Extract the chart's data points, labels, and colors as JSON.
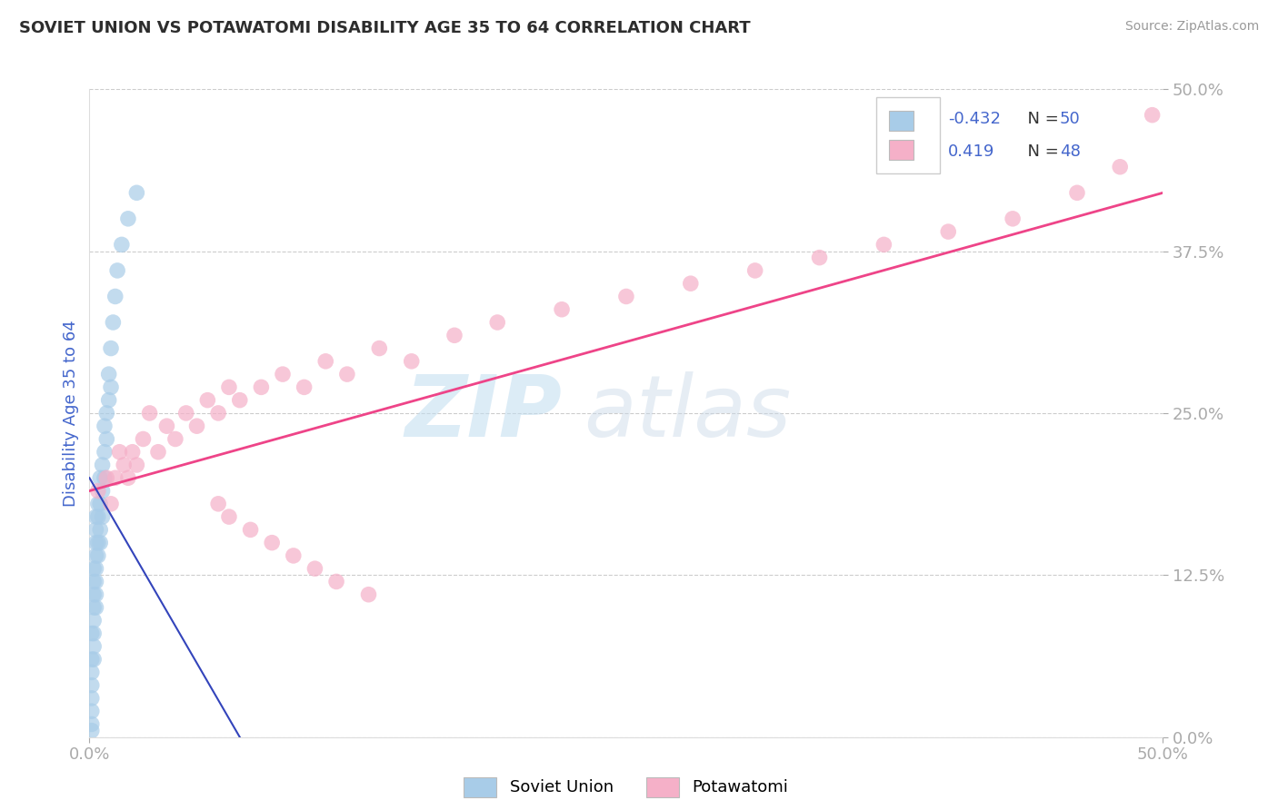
{
  "title": "SOVIET UNION VS POTAWATOMI DISABILITY AGE 35 TO 64 CORRELATION CHART",
  "source_text": "Source: ZipAtlas.com",
  "ylabel": "Disability Age 35 to 64",
  "xlim": [
    0.0,
    0.5
  ],
  "ylim": [
    0.0,
    0.5
  ],
  "ytick_vals": [
    0.0,
    0.125,
    0.25,
    0.375,
    0.5
  ],
  "ytick_labels": [
    "0.0%",
    "12.5%",
    "25.0%",
    "37.5%",
    "50.0%"
  ],
  "xtick_vals": [
    0.0,
    0.5
  ],
  "xtick_labels": [
    "0.0%",
    "50.0%"
  ],
  "grid_color": "#cccccc",
  "bg_color": "#ffffff",
  "soviet_color": "#a8cce8",
  "potawatomi_color": "#f5b0c8",
  "soviet_line_color": "#3344bb",
  "potawatomi_line_color": "#ee4488",
  "title_color": "#2d2d2d",
  "axis_color": "#4466cc",
  "r1_color": "#cc0000",
  "r2_color": "#4466cc",
  "legend_r1": "-0.432",
  "legend_n1": "50",
  "legend_r2": "0.419",
  "legend_n2": "48",
  "soviet_x": [
    0.001,
    0.001,
    0.001,
    0.001,
    0.001,
    0.001,
    0.001,
    0.001,
    0.002,
    0.002,
    0.002,
    0.002,
    0.002,
    0.002,
    0.002,
    0.002,
    0.003,
    0.003,
    0.003,
    0.003,
    0.003,
    0.003,
    0.003,
    0.003,
    0.004,
    0.004,
    0.004,
    0.004,
    0.005,
    0.005,
    0.005,
    0.005,
    0.006,
    0.006,
    0.006,
    0.007,
    0.007,
    0.007,
    0.008,
    0.008,
    0.009,
    0.009,
    0.01,
    0.01,
    0.011,
    0.012,
    0.013,
    0.015,
    0.018,
    0.022
  ],
  "soviet_y": [
    0.005,
    0.01,
    0.02,
    0.03,
    0.04,
    0.05,
    0.06,
    0.08,
    0.06,
    0.07,
    0.08,
    0.09,
    0.1,
    0.11,
    0.12,
    0.13,
    0.1,
    0.11,
    0.12,
    0.13,
    0.14,
    0.15,
    0.16,
    0.17,
    0.14,
    0.15,
    0.17,
    0.18,
    0.15,
    0.16,
    0.18,
    0.2,
    0.17,
    0.19,
    0.21,
    0.2,
    0.22,
    0.24,
    0.23,
    0.25,
    0.26,
    0.28,
    0.27,
    0.3,
    0.32,
    0.34,
    0.36,
    0.38,
    0.4,
    0.42
  ],
  "potawatomi_x": [
    0.004,
    0.008,
    0.01,
    0.012,
    0.014,
    0.016,
    0.018,
    0.02,
    0.022,
    0.025,
    0.028,
    0.032,
    0.036,
    0.04,
    0.045,
    0.05,
    0.055,
    0.06,
    0.065,
    0.07,
    0.08,
    0.09,
    0.1,
    0.11,
    0.12,
    0.135,
    0.15,
    0.17,
    0.19,
    0.22,
    0.25,
    0.28,
    0.31,
    0.34,
    0.37,
    0.4,
    0.43,
    0.46,
    0.48,
    0.495,
    0.06,
    0.065,
    0.075,
    0.085,
    0.095,
    0.105,
    0.115,
    0.13
  ],
  "potawatomi_y": [
    0.19,
    0.2,
    0.18,
    0.2,
    0.22,
    0.21,
    0.2,
    0.22,
    0.21,
    0.23,
    0.25,
    0.22,
    0.24,
    0.23,
    0.25,
    0.24,
    0.26,
    0.25,
    0.27,
    0.26,
    0.27,
    0.28,
    0.27,
    0.29,
    0.28,
    0.3,
    0.29,
    0.31,
    0.32,
    0.33,
    0.34,
    0.35,
    0.36,
    0.37,
    0.38,
    0.39,
    0.4,
    0.42,
    0.44,
    0.48,
    0.18,
    0.17,
    0.16,
    0.15,
    0.14,
    0.13,
    0.12,
    0.11
  ],
  "potawatomi_line_x0": 0.0,
  "potawatomi_line_y0": 0.19,
  "potawatomi_line_x1": 0.5,
  "potawatomi_line_y1": 0.42,
  "soviet_line_x0": 0.0,
  "soviet_line_y0": 0.2,
  "soviet_line_x1": 0.07,
  "soviet_line_y1": 0.0
}
